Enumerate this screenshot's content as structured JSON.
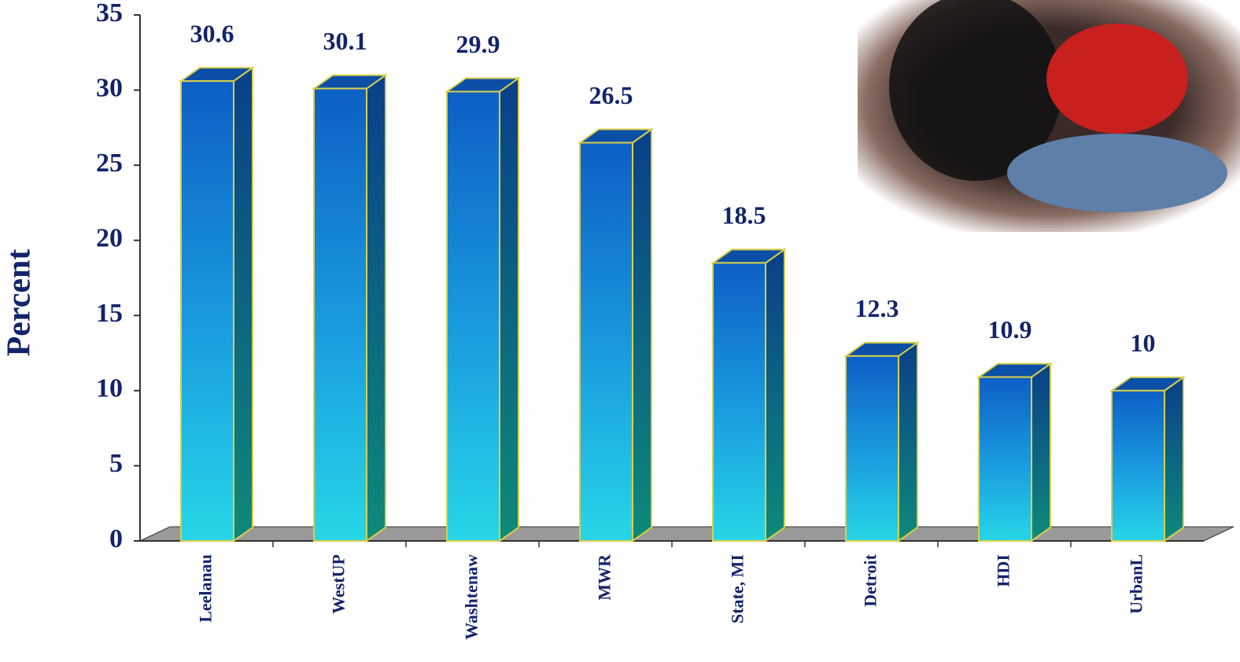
{
  "chart_data": {
    "type": "bar3d",
    "y_label": "Percent",
    "categories": [
      "Leelanau",
      "WestUP",
      "Washtenaw",
      "MWR",
      "State, MI",
      "Detroit",
      "HDI",
      "UrbanL"
    ],
    "values": [
      30.6,
      30.1,
      29.9,
      26.5,
      18.5,
      12.3,
      10.9,
      10
    ],
    "color": "#1e7fd8",
    "ylim": [
      0,
      35
    ],
    "yticks": [
      0,
      5,
      10,
      15,
      20,
      25,
      30,
      35
    ],
    "grid": false
  }
}
